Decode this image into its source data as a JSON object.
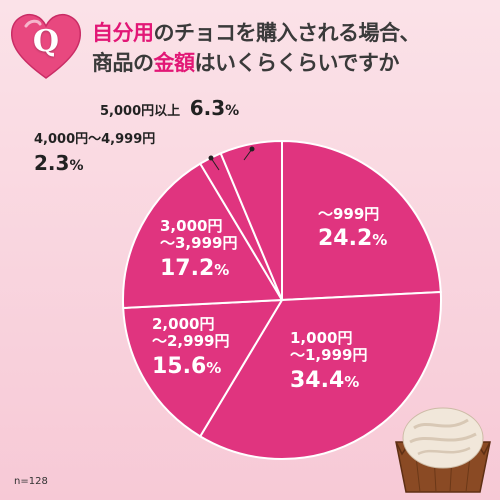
{
  "title": {
    "pre": "自分用",
    "mid": "のチョコを購入される場合、",
    "line2_pre": "商品の",
    "hl2": "金額",
    "line2_post": "はいくらくらいですか"
  },
  "badge": "Q",
  "note": "n=128",
  "colors": {
    "pie": "#e0347f",
    "edge": "#ffffff",
    "accent": "#e21776",
    "heart": "#e8487f"
  },
  "chart_data": {
    "type": "pie",
    "start": "12 o'clock, clockwise",
    "slices": [
      {
        "range": "～999円",
        "value": "24.2",
        "unit": "%"
      },
      {
        "range": "1,000円",
        "range2": "～1,999円",
        "value": "34.4",
        "unit": "%"
      },
      {
        "range": "2,000円",
        "range2": "～2,999円",
        "value": "15.6",
        "unit": "%"
      },
      {
        "range": "3,000円",
        "range2": "～3,999円",
        "value": "17.2",
        "unit": "%"
      },
      {
        "range": "4,000円～4,999円",
        "value": "2.3",
        "unit": "%"
      },
      {
        "range": "5,000円以上",
        "value": "6.3",
        "unit": "%"
      }
    ]
  }
}
